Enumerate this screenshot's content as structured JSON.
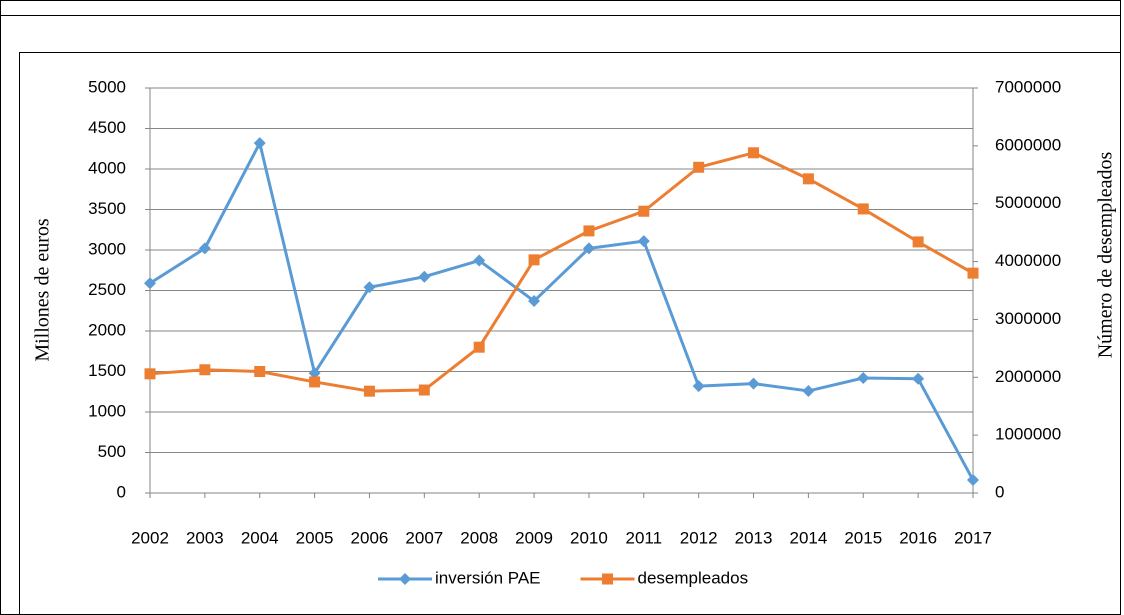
{
  "chart_data": {
    "type": "line",
    "y_label": "Millones de euros",
    "y2_label": "Número de desempleados",
    "categories": [
      "2002",
      "2003",
      "2004",
      "2005",
      "2006",
      "2007",
      "2008",
      "2009",
      "2010",
      "2011",
      "2012",
      "2013",
      "2014",
      "2015",
      "2016",
      "2017"
    ],
    "series": [
      {
        "name": "inversión PAE",
        "color": "#5b9bd5",
        "marker": "diamond",
        "values": [
          2590,
          3020,
          4320,
          1480,
          2540,
          2670,
          2870,
          2370,
          3020,
          3110,
          1320,
          1350,
          1260,
          1420,
          1410,
          160
        ]
      },
      {
        "name": "desempleados",
        "color": "#ed7d31",
        "marker": "square",
        "axis": "y2",
        "values": [
          2060000,
          2130000,
          2100000,
          1920000,
          1760000,
          1780000,
          2520000,
          4030000,
          4530000,
          4870000,
          5630000,
          5880000,
          5430000,
          4910000,
          4340000,
          3800000
        ]
      }
    ],
    "ylim": [
      0,
      5000
    ],
    "yticks": [
      0,
      500,
      1000,
      1500,
      2000,
      2500,
      3000,
      3500,
      4000,
      4500,
      5000
    ],
    "y2lim": [
      0,
      7000000
    ],
    "y2ticks": [
      0,
      1000000,
      2000000,
      3000000,
      4000000,
      5000000,
      6000000,
      7000000
    ],
    "grid": true,
    "legend": "bottom"
  }
}
